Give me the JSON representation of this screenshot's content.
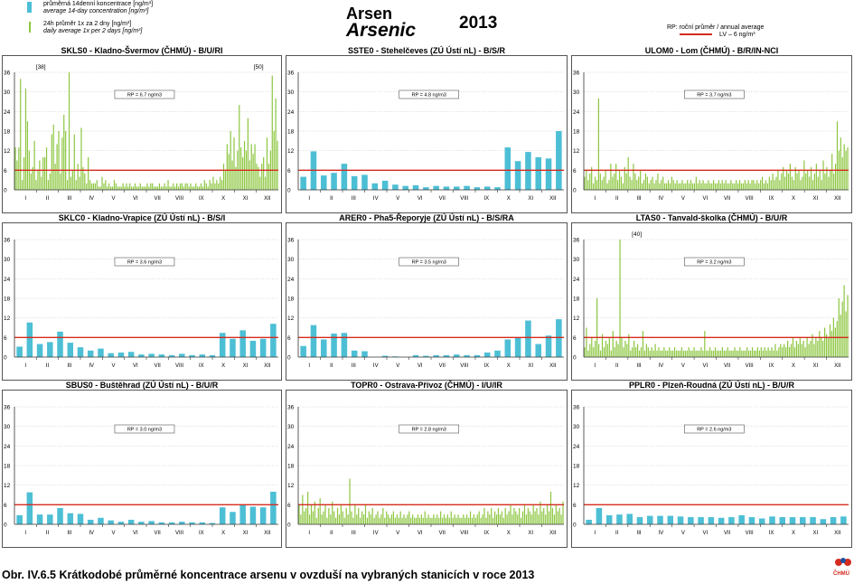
{
  "header": {
    "title_cz": "Arsen",
    "title_en": "Arsenic",
    "year": "2013"
  },
  "legend": {
    "item1_cz": "průměrná 14denní koncentrace [ng/m³]",
    "item1_en": "average 14-day concentration [ng/m³]",
    "item2_cz": "24h průměr 1x za 2 dny [ng/m³]",
    "item2_en": "daily average 1x per 2 days [ng/m³]",
    "rp_label": "RP: roční průměr / annual average",
    "lv_label": "LV – 6 ng/m³"
  },
  "caption": "Obr. IV.6.5  Krátkodobé průměrné koncentrace arsenu v ovzduší na vybraných stanicích v roce 2013",
  "logo_text": "ČHMÚ",
  "colors": {
    "bar_14day": "#4dbfd5",
    "bar_daily": "#8cc63f",
    "limit_line": "#d52b1e",
    "grid": "#bcbcbc"
  },
  "chart_data": [
    {
      "id": "SKLS0",
      "type": "bar",
      "title": "SKLS0 - Kladno-Švermov (ČHMÚ) - B/U/RI",
      "mode": "daily",
      "annual_label": "RP = 6.7 ng/m3",
      "limit_value": 6,
      "ylim": [
        0,
        36
      ],
      "yticks": [
        0,
        6,
        12,
        18,
        24,
        30,
        36
      ],
      "months": [
        "I",
        "II",
        "III",
        "IV",
        "V",
        "VI",
        "VII",
        "VIII",
        "IX",
        "X",
        "XI",
        "XII"
      ],
      "annotations": [
        {
          "text": "[38]",
          "month": 2.2
        },
        {
          "text": "[50]",
          "month": 12.1
        }
      ],
      "values": [
        13,
        9,
        13,
        34,
        3,
        10,
        31,
        21,
        12,
        5,
        7,
        15,
        3,
        6,
        9,
        4,
        10,
        10,
        13,
        3,
        5,
        17,
        20,
        8,
        14,
        18,
        5,
        16,
        23,
        18,
        3,
        36,
        4,
        6,
        17,
        3,
        8,
        4,
        19,
        7,
        5,
        2,
        10,
        3,
        2,
        2,
        2,
        3,
        1,
        1,
        4,
        2,
        3,
        1,
        2,
        1,
        1,
        3,
        2,
        1,
        1,
        1,
        2,
        1,
        2,
        1,
        2,
        1,
        1,
        2,
        1,
        1,
        2,
        1,
        1,
        1,
        2,
        1,
        2,
        2,
        1,
        1,
        1,
        2,
        1,
        1,
        2,
        1,
        3,
        1,
        1,
        2,
        1,
        2,
        1,
        2,
        2,
        1,
        2,
        2,
        1,
        2,
        1,
        1,
        2,
        1,
        1,
        2,
        1,
        3,
        2,
        1,
        3,
        2,
        4,
        2,
        3,
        2,
        4,
        3,
        8,
        6,
        14,
        11,
        18,
        9,
        16,
        7,
        12,
        26,
        13,
        10,
        15,
        12,
        22,
        9,
        14,
        11,
        14,
        8,
        7,
        4,
        8,
        10,
        4,
        16,
        8,
        12,
        35,
        18,
        28,
        15
      ]
    },
    {
      "id": "SSTE0",
      "type": "bar",
      "title": "SSTE0 - Stehelčeves (ZÚ Ústí nL) - B/S/R",
      "mode": "14day",
      "annual_label": "RP = 4.8 ng/m3",
      "limit_value": 6,
      "ylim": [
        0,
        36
      ],
      "yticks": [
        0,
        6,
        12,
        18,
        24,
        30,
        36
      ],
      "months": [
        "I",
        "II",
        "III",
        "IV",
        "V",
        "VI",
        "VII",
        "VIII",
        "IX",
        "X",
        "XI",
        "XII"
      ],
      "values": [
        4,
        11.8,
        4.4,
        5.2,
        8,
        4.2,
        4.6,
        2,
        2.8,
        1.6,
        1.2,
        1.4,
        0.8,
        1.2,
        1,
        1,
        1.2,
        0.8,
        1,
        0.8,
        13,
        8.8,
        11.6,
        10,
        9.6,
        18
      ]
    },
    {
      "id": "ULOM0",
      "type": "bar",
      "title": "ULOM0 - Lom (ČHMÚ) - B/R/IN-NCI",
      "mode": "daily",
      "annual_label": "RP = 3.7 ng/m3",
      "limit_value": 6,
      "ylim": [
        0,
        36
      ],
      "yticks": [
        0,
        6,
        12,
        18,
        24,
        30,
        36
      ],
      "months": [
        "I",
        "II",
        "III",
        "IV",
        "V",
        "VI",
        "VII",
        "VIII",
        "IX",
        "X",
        "XI",
        "XII"
      ],
      "values": [
        4,
        6,
        3,
        5,
        7,
        2,
        4,
        3,
        28,
        5,
        3,
        4,
        6,
        2,
        3,
        8,
        4,
        5,
        8,
        3,
        6,
        4,
        2,
        7,
        5,
        10,
        4,
        3,
        8,
        5,
        3,
        4,
        6,
        2,
        3,
        5,
        4,
        2,
        3,
        4,
        2,
        3,
        5,
        2,
        3,
        4,
        2,
        2,
        3,
        2,
        4,
        3,
        2,
        3,
        2,
        2,
        3,
        2,
        2,
        3,
        2,
        3,
        2,
        2,
        4,
        2,
        3,
        2,
        3,
        2,
        2,
        3,
        2,
        2,
        3,
        2,
        2,
        3,
        2,
        3,
        2,
        3,
        2,
        2,
        3,
        2,
        2,
        3,
        2,
        3,
        2,
        2,
        3,
        2,
        3,
        2,
        3,
        3,
        2,
        3,
        2,
        3,
        4,
        2,
        3,
        2,
        4,
        3,
        5,
        3,
        4,
        6,
        3,
        5,
        7,
        4,
        6,
        5,
        8,
        4,
        3,
        7,
        5,
        6,
        3,
        4,
        9,
        5,
        6,
        4,
        7,
        3,
        5,
        8,
        4,
        6,
        3,
        9,
        5,
        7,
        4,
        6,
        11,
        5,
        8,
        21,
        12,
        16,
        10,
        14,
        12,
        13
      ]
    },
    {
      "id": "SKLC0",
      "type": "bar",
      "title": "SKLC0 - Kladno-Vrapice (ZÚ Ústí nL) - B/S/I",
      "mode": "14day",
      "annual_label": "RP = 3.6 ng/m3",
      "limit_value": 6,
      "ylim": [
        0,
        36
      ],
      "yticks": [
        0,
        6,
        12,
        18,
        24,
        30,
        36
      ],
      "months": [
        "I",
        "II",
        "III",
        "IV",
        "V",
        "VI",
        "VII",
        "VIII",
        "IX",
        "X",
        "XI",
        "XII"
      ],
      "values": [
        3.2,
        10.6,
        4,
        4.6,
        7.8,
        4.4,
        3,
        2,
        2.6,
        1.2,
        1.4,
        1.6,
        0.8,
        1,
        0.8,
        0.6,
        1,
        0.6,
        0.8,
        0.6,
        7.4,
        5.6,
        8.2,
        5,
        5.6,
        10.2
      ]
    },
    {
      "id": "ARER0",
      "type": "bar",
      "title": "ARER0 - Pha5-Řeporyje (ZÚ Ústí nL) - B/S/RA",
      "mode": "14day",
      "annual_label": "RP = 3.5 ng/m3",
      "limit_value": 6,
      "ylim": [
        0,
        36
      ],
      "yticks": [
        0,
        6,
        12,
        18,
        24,
        30,
        36
      ],
      "months": [
        "I",
        "II",
        "III",
        "IV",
        "V",
        "VI",
        "VII",
        "VIII",
        "IX",
        "X",
        "XI",
        "XII"
      ],
      "values": [
        3.4,
        9.8,
        5.4,
        7.2,
        7.4,
        2,
        1.8,
        0,
        0.4,
        0.2,
        0,
        0.6,
        0.4,
        0.6,
        0.6,
        0.8,
        0.6,
        0.6,
        1.4,
        2,
        5.4,
        6,
        11.2,
        4,
        6.6,
        11.6
      ]
    },
    {
      "id": "LTAS0",
      "type": "bar",
      "title": "LTAS0 - Tanvald-školka (ČHMÚ) - B/U/R",
      "mode": "daily",
      "annual_label": "RP = 3.2 ng/m3",
      "limit_value": 6,
      "ylim": [
        0,
        36
      ],
      "yticks": [
        0,
        6,
        12,
        18,
        24,
        30,
        36
      ],
      "months": [
        "I",
        "II",
        "III",
        "IV",
        "V",
        "VI",
        "VII",
        "VIII",
        "IX",
        "X",
        "XI",
        "XII"
      ],
      "annotations": [
        {
          "text": "[40]",
          "month": 3.4
        }
      ],
      "values": [
        3,
        9,
        2,
        4,
        6,
        3,
        5,
        18,
        4,
        2,
        7,
        3,
        5,
        4,
        6,
        2,
        8,
        3,
        5,
        4,
        36,
        6,
        3,
        5,
        4,
        7,
        2,
        3,
        5,
        3,
        4,
        2,
        3,
        8,
        2,
        4,
        3,
        2,
        3,
        2,
        4,
        2,
        3,
        2,
        2,
        3,
        2,
        2,
        3,
        2,
        2,
        3,
        2,
        2,
        2,
        3,
        2,
        2,
        2,
        3,
        2,
        2,
        3,
        2,
        2,
        2,
        3,
        2,
        8,
        2,
        2,
        3,
        2,
        2,
        3,
        2,
        2,
        2,
        3,
        2,
        2,
        3,
        2,
        2,
        2,
        3,
        2,
        2,
        3,
        2,
        2,
        2,
        3,
        2,
        2,
        3,
        2,
        2,
        3,
        2,
        3,
        2,
        3,
        2,
        3,
        2,
        3,
        2,
        4,
        2,
        3,
        4,
        3,
        4,
        3,
        5,
        3,
        4,
        6,
        3,
        5,
        4,
        6,
        4,
        5,
        3,
        6,
        4,
        5,
        7,
        4,
        6,
        5,
        8,
        6,
        5,
        9,
        7,
        6,
        10,
        8,
        12,
        9,
        11,
        18,
        13,
        17,
        22,
        14,
        19
      ]
    },
    {
      "id": "SBUS0",
      "type": "bar",
      "title": "SBUS0 - Buštěhrad (ZÚ Ústí nL) - B/U/R",
      "mode": "14day",
      "annual_label": "RP = 3.0 ng/m3",
      "limit_value": 6,
      "ylim": [
        0,
        36
      ],
      "yticks": [
        0,
        6,
        12,
        18,
        24,
        30,
        36
      ],
      "months": [
        "I",
        "II",
        "III",
        "IV",
        "V",
        "VI",
        "VII",
        "VIII",
        "IX",
        "X",
        "XI",
        "XII"
      ],
      "values": [
        2.8,
        9.8,
        3,
        3,
        5,
        3.4,
        3.2,
        1.4,
        2,
        1.2,
        0.8,
        1.4,
        0.8,
        1,
        0.6,
        0.6,
        0.8,
        0.6,
        0.6,
        0.4,
        5.2,
        3.8,
        6,
        5.4,
        5.2,
        10
      ]
    },
    {
      "id": "TOPR0",
      "type": "bar",
      "title": "TOPR0 - Ostrava-Přívoz (ČHMÚ) - I/U/IR",
      "mode": "daily",
      "annual_label": "RP = 2.8 ng/m3",
      "limit_value": 6,
      "ylim": [
        0,
        36
      ],
      "yticks": [
        0,
        6,
        12,
        18,
        24,
        30,
        36
      ],
      "months": [
        "I",
        "II",
        "III",
        "IV",
        "V",
        "VI",
        "VII",
        "VIII",
        "IX",
        "X",
        "XI",
        "XII"
      ],
      "values": [
        6,
        3,
        9,
        4,
        5,
        10,
        3,
        6,
        4,
        7,
        2,
        5,
        8,
        3,
        4,
        6,
        2,
        5,
        3,
        7,
        4,
        2,
        5,
        3,
        6,
        4,
        2,
        5,
        3,
        14,
        4,
        2,
        6,
        3,
        5,
        2,
        4,
        3,
        6,
        2,
        4,
        3,
        5,
        2,
        3,
        4,
        2,
        3,
        5,
        2,
        4,
        3,
        2,
        3,
        4,
        2,
        3,
        2,
        4,
        2,
        3,
        2,
        3,
        4,
        2,
        3,
        2,
        2,
        3,
        2,
        3,
        2,
        4,
        2,
        3,
        2,
        2,
        3,
        2,
        3,
        2,
        4,
        2,
        3,
        2,
        3,
        2,
        4,
        2,
        3,
        2,
        3,
        2,
        2,
        3,
        2,
        3,
        2,
        4,
        2,
        3,
        2,
        3,
        4,
        2,
        3,
        5,
        2,
        4,
        3,
        5,
        2,
        4,
        3,
        5,
        3,
        4,
        2,
        5,
        3,
        4,
        6,
        3,
        5,
        4,
        3,
        5,
        2,
        4,
        6,
        3,
        5,
        4,
        3,
        6,
        4,
        5,
        3,
        7,
        4,
        5,
        3,
        6,
        4,
        10,
        5,
        3,
        6,
        4,
        5,
        3,
        7
      ]
    },
    {
      "id": "PPLR0",
      "type": "bar",
      "title": "PPLR0 - Plzeň-Roudná (ZÚ Ústí nL) - B/U/R",
      "mode": "14day",
      "annual_label": "RP = 2.6 ng/m3",
      "limit_value": 6,
      "ylim": [
        0,
        36
      ],
      "yticks": [
        0,
        6,
        12,
        18,
        24,
        30,
        36
      ],
      "months": [
        "I",
        "II",
        "III",
        "IV",
        "V",
        "VI",
        "VII",
        "VIII",
        "IX",
        "X",
        "XI",
        "XII"
      ],
      "values": [
        1.4,
        5,
        2.8,
        3,
        3.2,
        2.2,
        2.6,
        2.6,
        2.6,
        2.4,
        2.2,
        2.2,
        2.2,
        2,
        2.2,
        2.8,
        2.2,
        1.8,
        2.4,
        2.2,
        2.2,
        2.2,
        2.2,
        1.6,
        2.2,
        2.4
      ]
    }
  ]
}
